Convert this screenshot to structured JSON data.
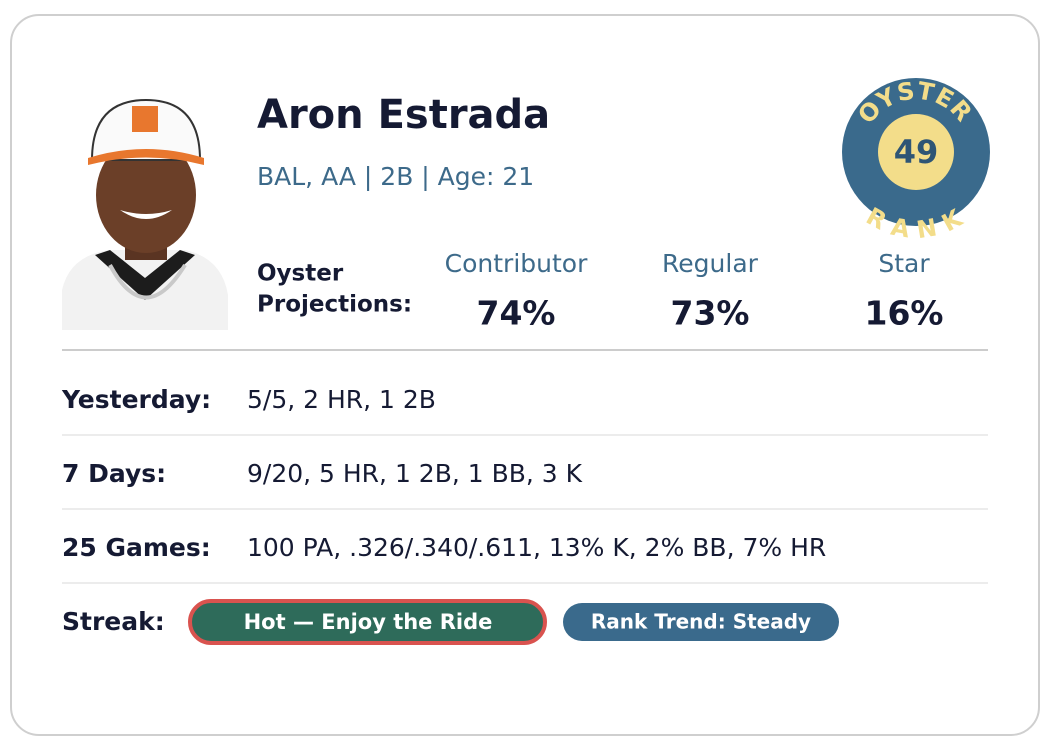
{
  "player": {
    "name": "Aron Estrada",
    "details": "BAL, AA | 2B | Age: 21"
  },
  "badge": {
    "top": "OYSTER",
    "bottom": "RANK",
    "rank": "49"
  },
  "projections": {
    "label": [
      "Oyster",
      "Projections:"
    ],
    "columns": [
      {
        "name": "Contributor",
        "value": "74%"
      },
      {
        "name": "Regular",
        "value": "73%"
      },
      {
        "name": "Star",
        "value": "16%"
      }
    ]
  },
  "stats": [
    {
      "label": "Yesterday:",
      "value": "5/5, 2 HR, 1 2B"
    },
    {
      "label": "7 Days:",
      "value": "9/20, 5 HR, 1 2B, 1 BB, 3 K"
    },
    {
      "label": "25 Games:",
      "value": "100 PA, .326/.340/.611, 13% K, 2% BB, 7% HR"
    }
  ],
  "streak": {
    "label": "Streak:",
    "status": "Hot — Enjoy the Ride",
    "trend": "Rank Trend: Steady"
  }
}
